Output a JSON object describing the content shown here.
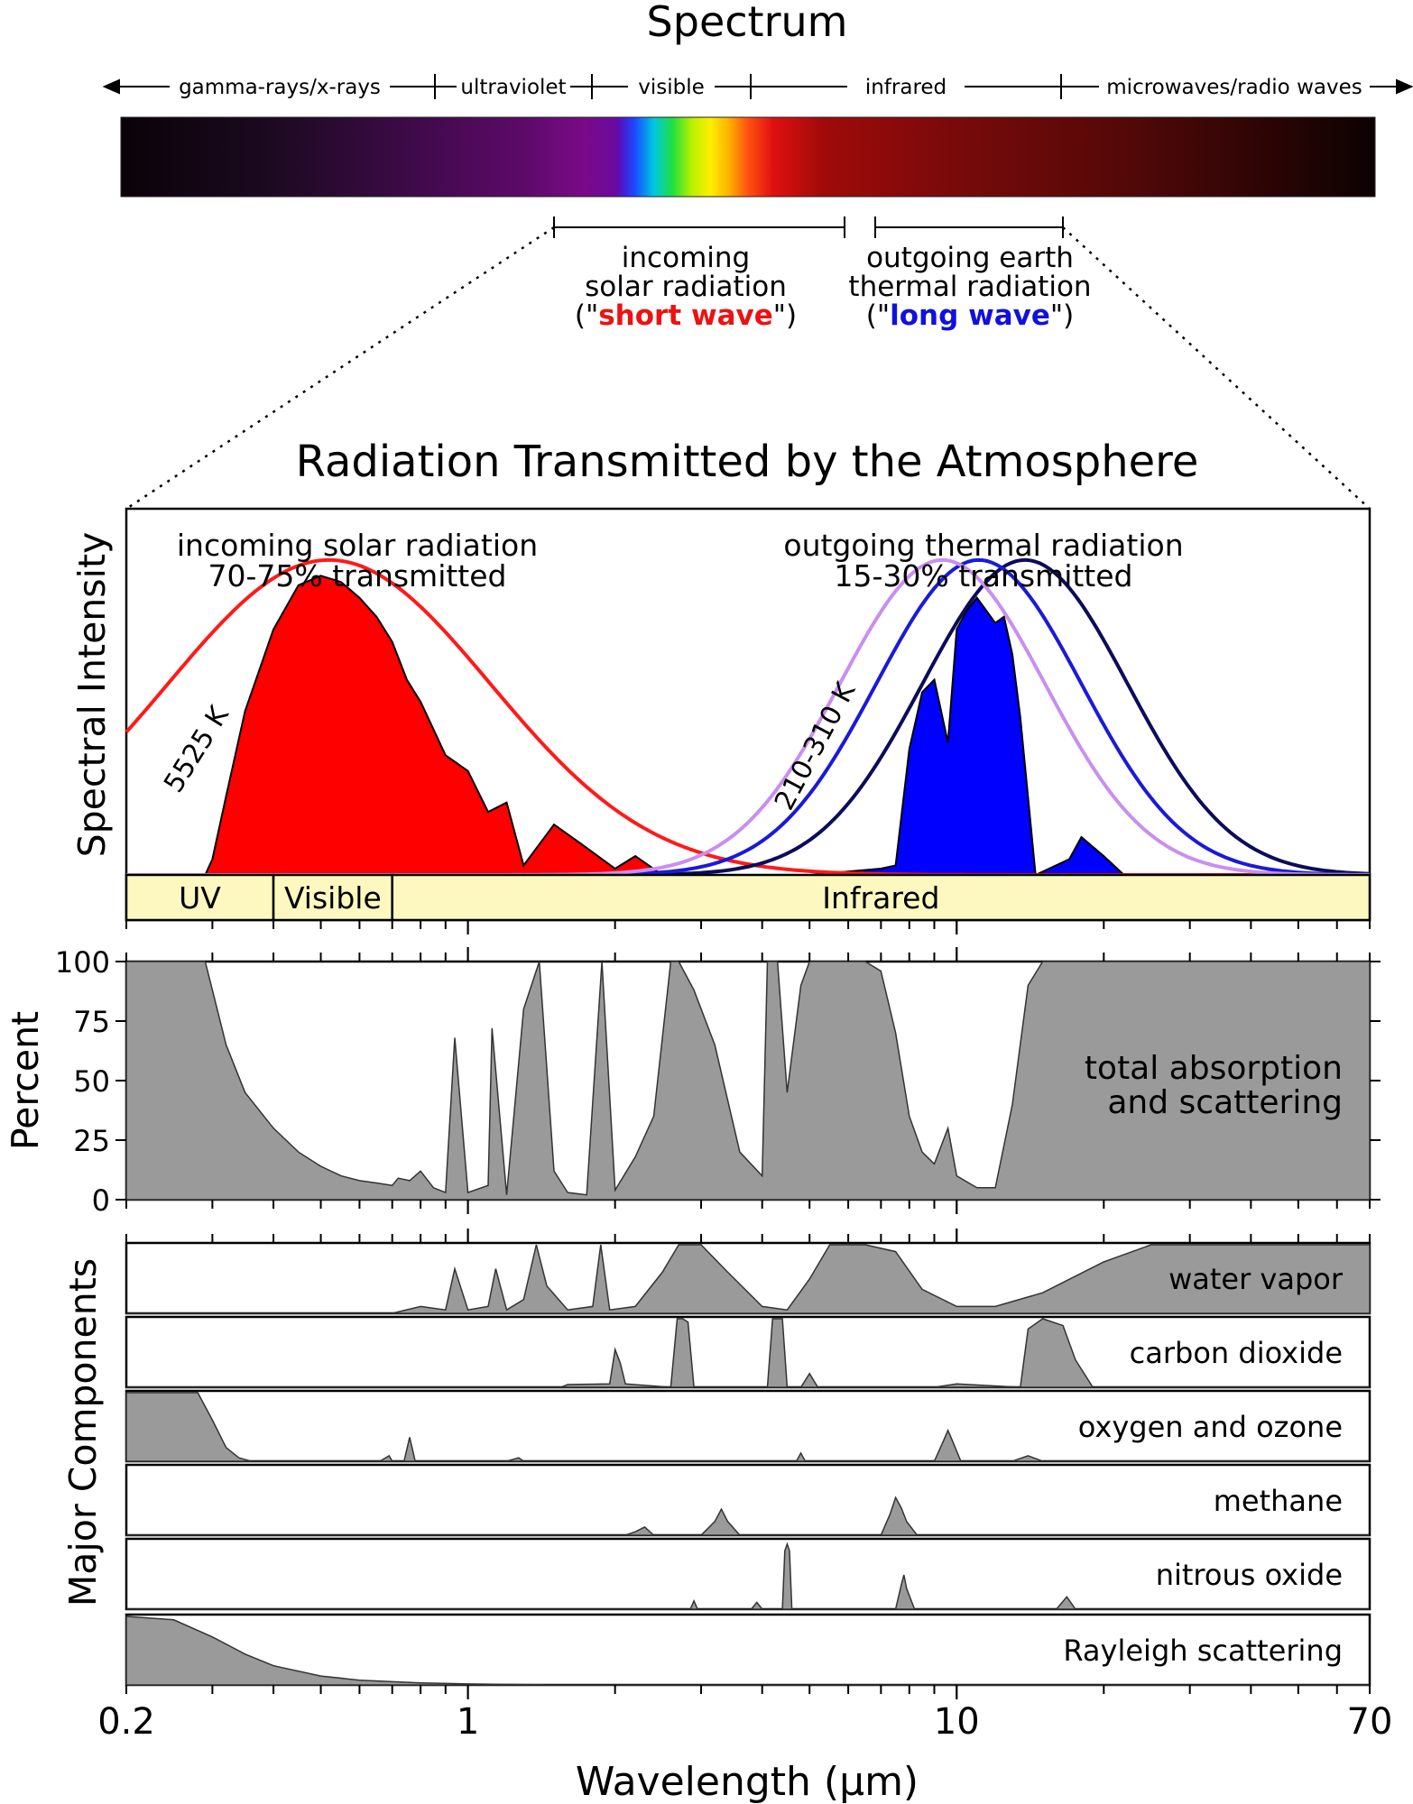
{
  "spectrum": {
    "title": "Spectrum",
    "bands": [
      "gamma-rays/x-rays",
      "ultraviolet",
      "visible",
      "infrared",
      "microwaves/radio waves"
    ],
    "incoming": {
      "line1": "incoming",
      "line2": "solar radiation",
      "open": "(\"",
      "emph": "short wave",
      "close": "\")",
      "emph_color": "#ee1111"
    },
    "outgoing": {
      "line1": "outgoing earth",
      "line2": "thermal radiation",
      "open": "(\"",
      "emph": "long wave",
      "close": "\")",
      "emph_color": "#1111dd"
    }
  },
  "chart_data": [
    {
      "panel": "spectral-intensity",
      "type": "area",
      "title": "Radiation Transmitted by the Atmosphere",
      "ylabel": "Spectral Intensity",
      "xscale": "log",
      "xlim": [
        0.2,
        70
      ],
      "annotations": {
        "solar_line1": "incoming solar radiation",
        "solar_line2": "70-75% transmitted",
        "thermal_line1": "outgoing thermal radiation",
        "thermal_line2": "15-30% transmitted",
        "solar_temp": "5525 K",
        "thermal_temp": "210-310 K"
      },
      "colors": {
        "solar_curve": "#ff1a1a",
        "solar_fill": "#ff0000",
        "thermal_fill": "#0000ff",
        "curve_210": "#c88ff0",
        "curve_260": "#1a1ad8",
        "curve_310": "#0c0c5a"
      },
      "blackbody_peaks_um": {
        "solar": 0.52,
        "thermal_210": 13.8,
        "thermal_260": 11.1,
        "thermal_310": 9.35
      },
      "transmitted_solar": {
        "x": [
          0.29,
          0.3,
          0.32,
          0.35,
          0.4,
          0.45,
          0.5,
          0.55,
          0.6,
          0.65,
          0.7,
          0.75,
          0.8,
          0.9,
          1.0,
          1.1,
          1.2,
          1.3,
          1.5,
          1.7,
          2.0,
          2.2,
          2.5
        ],
        "y": [
          0.0,
          0.05,
          0.25,
          0.52,
          0.78,
          0.92,
          0.95,
          0.93,
          0.88,
          0.82,
          0.74,
          0.62,
          0.55,
          0.38,
          0.33,
          0.2,
          0.23,
          0.03,
          0.16,
          0.1,
          0.02,
          0.06,
          0.0
        ]
      },
      "transmitted_thermal": {
        "x": [
          5.0,
          7.0,
          7.5,
          8.0,
          8.5,
          9.0,
          9.6,
          10.0,
          10.5,
          11.0,
          12.0,
          12.5,
          13.0,
          13.5,
          14.5,
          17.0,
          18.0,
          20.0,
          22.0
        ],
        "y": [
          0.0,
          0.02,
          0.03,
          0.4,
          0.58,
          0.62,
          0.42,
          0.78,
          0.84,
          0.88,
          0.8,
          0.82,
          0.7,
          0.5,
          0.0,
          0.05,
          0.12,
          0.06,
          0.0
        ]
      },
      "bands": [
        {
          "label": "UV",
          "from": 0.2,
          "to": 0.4
        },
        {
          "label": "Visible",
          "from": 0.4,
          "to": 0.7
        },
        {
          "label": "Infrared",
          "from": 0.7,
          "to": 70
        }
      ]
    },
    {
      "panel": "total-absorption",
      "type": "area",
      "ylabel": "Percent",
      "ylim": [
        0,
        100
      ],
      "yticks": [
        0,
        25,
        50,
        75,
        100
      ],
      "xscale": "log",
      "xlim": [
        0.2,
        70
      ],
      "label_line1": "total absorption",
      "label_line2": "and scattering",
      "x": [
        0.2,
        0.29,
        0.3,
        0.32,
        0.35,
        0.4,
        0.45,
        0.5,
        0.55,
        0.6,
        0.65,
        0.7,
        0.72,
        0.76,
        0.8,
        0.85,
        0.9,
        0.94,
        1.0,
        1.1,
        1.12,
        1.2,
        1.3,
        1.4,
        1.5,
        1.6,
        1.75,
        1.88,
        2.0,
        2.2,
        2.4,
        2.6,
        2.7,
        2.9,
        3.2,
        3.6,
        4.0,
        4.1,
        4.3,
        4.5,
        4.8,
        5.0,
        5.5,
        6.0,
        6.5,
        7.0,
        7.5,
        8.0,
        8.5,
        9.0,
        9.6,
        10.0,
        11.0,
        12.0,
        13.0,
        14.0,
        15.0,
        16.0,
        20.0,
        70.0
      ],
      "y": [
        100,
        100,
        88,
        65,
        45,
        30,
        20,
        14,
        10,
        8,
        7,
        6,
        9,
        8,
        12,
        5,
        3,
        68,
        3,
        6,
        72,
        2,
        80,
        100,
        12,
        3,
        2,
        100,
        4,
        18,
        35,
        100,
        100,
        88,
        65,
        20,
        10,
        100,
        100,
        45,
        90,
        100,
        100,
        100,
        100,
        96,
        70,
        35,
        20,
        15,
        30,
        10,
        5,
        5,
        40,
        90,
        100,
        100,
        100,
        100
      ]
    },
    {
      "panel": "major-components",
      "type": "area",
      "ylabel": "Major Components",
      "xlabel": "Wavelength (µm)",
      "xscale": "log",
      "xlim": [
        0.2,
        70
      ],
      "xtick_labels": [
        "0.2",
        "1",
        "10",
        "70"
      ],
      "xtick_values": [
        0.2,
        1,
        10,
        70
      ],
      "series": [
        {
          "name": "water vapor",
          "x": [
            0.2,
            0.7,
            0.8,
            0.9,
            0.94,
            1.0,
            1.1,
            1.14,
            1.2,
            1.3,
            1.38,
            1.45,
            1.6,
            1.8,
            1.87,
            1.95,
            2.2,
            2.5,
            2.7,
            3.0,
            3.4,
            4.0,
            4.5,
            5.0,
            5.5,
            6.5,
            7.5,
            8.5,
            10.0,
            12.0,
            15.0,
            20.0,
            25.0,
            70.0
          ],
          "y": [
            0,
            0,
            0.1,
            0.05,
            0.65,
            0.05,
            0.1,
            0.65,
            0.05,
            0.2,
            1.0,
            0.4,
            0.05,
            0.1,
            1.0,
            0.05,
            0.1,
            0.6,
            1.0,
            1.0,
            0.6,
            0.1,
            0.05,
            0.5,
            1.0,
            1.0,
            0.9,
            0.35,
            0.1,
            0.1,
            0.3,
            0.75,
            1.0,
            1.0
          ]
        },
        {
          "name": "carbon dioxide",
          "x": [
            0.2,
            1.55,
            1.6,
            1.95,
            2.0,
            2.05,
            2.1,
            2.6,
            2.68,
            2.75,
            2.82,
            2.9,
            4.1,
            4.2,
            4.3,
            4.4,
            4.5,
            4.8,
            5.0,
            5.2,
            9.0,
            10.0,
            13.5,
            14.0,
            15.0,
            16.5,
            17.5,
            19.0,
            70.0
          ],
          "y": [
            0,
            0,
            0.04,
            0.05,
            0.55,
            0.35,
            0.05,
            0.0,
            1.0,
            1.0,
            0.95,
            0.0,
            0.0,
            1.0,
            1.0,
            1.0,
            0.0,
            0.0,
            0.2,
            0.0,
            0.0,
            0.05,
            0.0,
            0.85,
            1.0,
            0.9,
            0.4,
            0.0,
            0.0
          ]
        },
        {
          "name": "oxygen and ozone",
          "x": [
            0.2,
            0.28,
            0.3,
            0.32,
            0.34,
            0.36,
            0.66,
            0.69,
            0.7,
            0.74,
            0.76,
            0.78,
            1.2,
            1.27,
            1.3,
            4.7,
            4.8,
            4.9,
            9.0,
            9.4,
            9.6,
            9.8,
            10.2,
            13.0,
            14.0,
            15.0,
            70.0
          ],
          "y": [
            1.0,
            1.0,
            0.6,
            0.2,
            0.05,
            0.0,
            0.0,
            0.08,
            0.0,
            0.0,
            0.35,
            0.0,
            0.0,
            0.05,
            0.0,
            0.0,
            0.12,
            0.0,
            0.0,
            0.3,
            0.45,
            0.3,
            0.0,
            0.0,
            0.08,
            0.0,
            0.0
          ]
        },
        {
          "name": "methane",
          "x": [
            0.2,
            2.1,
            2.2,
            2.3,
            2.4,
            3.0,
            3.2,
            3.3,
            3.4,
            3.6,
            7.0,
            7.3,
            7.5,
            7.7,
            7.9,
            8.3,
            70.0
          ],
          "y": [
            0,
            0,
            0.05,
            0.12,
            0.0,
            0.0,
            0.2,
            0.38,
            0.2,
            0.0,
            0.0,
            0.3,
            0.55,
            0.4,
            0.2,
            0.0,
            0.0
          ]
        },
        {
          "name": "nitrous oxide",
          "x": [
            0.2,
            2.85,
            2.9,
            2.95,
            3.8,
            3.9,
            4.0,
            4.4,
            4.45,
            4.5,
            4.55,
            4.6,
            7.5,
            7.7,
            7.8,
            7.9,
            8.2,
            16.0,
            16.8,
            17.5,
            70.0
          ],
          "y": [
            0,
            0,
            0.12,
            0.0,
            0.0,
            0.1,
            0.0,
            0.0,
            0.85,
            0.95,
            0.85,
            0.0,
            0.0,
            0.35,
            0.5,
            0.3,
            0.0,
            0.0,
            0.18,
            0.0,
            0.0
          ]
        },
        {
          "name": "Rayleigh scattering",
          "x": [
            0.2,
            0.25,
            0.3,
            0.35,
            0.4,
            0.5,
            0.6,
            0.8,
            1.0,
            1.5,
            2.0,
            70.0
          ],
          "y": [
            1.0,
            0.95,
            0.7,
            0.45,
            0.28,
            0.13,
            0.07,
            0.03,
            0.015,
            0.0,
            0.0,
            0.0
          ]
        }
      ]
    }
  ]
}
